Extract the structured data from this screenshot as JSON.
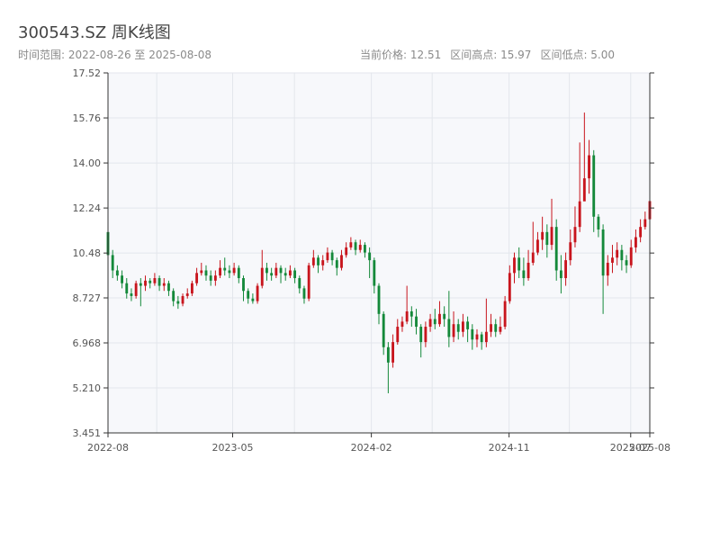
{
  "header": {
    "title": "300543.SZ 周K线图",
    "time_range": "时间范围: 2022-08-26 至 2025-08-08",
    "current_price": "当前价格: 12.51",
    "range_high": "区间高点: 15.97",
    "range_low": "区间低点: 5.00"
  },
  "colors": {
    "up": "#c8151d",
    "down": "#14893a",
    "plot_bg": "#f7f8fb",
    "grid": "#e3e6ec",
    "axis": "#333333"
  },
  "chart_data": {
    "type": "candlestick",
    "title": "300543.SZ 周K线图",
    "xlabel": "",
    "ylabel": "",
    "ylim": [
      3.451,
      17.52
    ],
    "y_ticks": [
      "3.451",
      "5.210",
      "6.968",
      "8.727",
      "10.48",
      "12.24",
      "14.00",
      "15.76",
      "17.52"
    ],
    "x_range": [
      "2022-08-26",
      "2025-08-08"
    ],
    "x_ticks": [
      "2022-08",
      "2023-05",
      "2024-02",
      "2024-11",
      "2025-07",
      "2025-08"
    ],
    "grid": true,
    "legend": "none",
    "weeks": [
      [
        11.3,
        10.4,
        11.9,
        10.2
      ],
      [
        10.4,
        9.8,
        10.6,
        9.5
      ],
      [
        9.8,
        9.6,
        10.0,
        9.4
      ],
      [
        9.6,
        9.3,
        9.8,
        9.1
      ],
      [
        9.3,
        8.9,
        9.5,
        8.7
      ],
      [
        8.9,
        8.8,
        9.1,
        8.6
      ],
      [
        8.8,
        9.3,
        9.4,
        8.7
      ],
      [
        9.3,
        9.2,
        9.5,
        8.4
      ],
      [
        9.2,
        9.4,
        9.6,
        9.0
      ],
      [
        9.4,
        9.3,
        9.5,
        9.1
      ],
      [
        9.3,
        9.5,
        9.7,
        9.2
      ],
      [
        9.5,
        9.2,
        9.6,
        9.0
      ],
      [
        9.2,
        9.3,
        9.5,
        9.0
      ],
      [
        9.3,
        9.0,
        9.4,
        8.8
      ],
      [
        9.0,
        8.6,
        9.1,
        8.4
      ],
      [
        8.6,
        8.5,
        8.8,
        8.3
      ],
      [
        8.5,
        8.8,
        8.9,
        8.4
      ],
      [
        8.8,
        8.9,
        9.1,
        8.7
      ],
      [
        8.9,
        9.3,
        9.4,
        8.8
      ],
      [
        9.3,
        9.7,
        9.9,
        9.2
      ],
      [
        9.7,
        9.8,
        10.1,
        9.6
      ],
      [
        9.8,
        9.6,
        10.0,
        9.4
      ],
      [
        9.6,
        9.4,
        9.8,
        9.2
      ],
      [
        9.4,
        9.6,
        9.8,
        9.2
      ],
      [
        9.6,
        9.9,
        10.2,
        9.5
      ],
      [
        9.9,
        9.8,
        10.3,
        9.6
      ],
      [
        9.8,
        9.7,
        10.0,
        9.5
      ],
      [
        9.7,
        9.9,
        10.1,
        9.6
      ],
      [
        9.9,
        9.5,
        10.0,
        9.3
      ],
      [
        9.5,
        9.0,
        9.6,
        8.6
      ],
      [
        9.0,
        8.7,
        9.1,
        8.5
      ],
      [
        8.7,
        8.6,
        8.9,
        8.5
      ],
      [
        8.6,
        9.2,
        9.3,
        8.5
      ],
      [
        9.2,
        9.9,
        10.6,
        9.1
      ],
      [
        9.9,
        9.7,
        10.1,
        9.4
      ],
      [
        9.7,
        9.6,
        9.9,
        9.4
      ],
      [
        9.6,
        9.9,
        10.1,
        9.5
      ],
      [
        9.9,
        9.7,
        10.0,
        9.3
      ],
      [
        9.7,
        9.6,
        9.9,
        9.4
      ],
      [
        9.6,
        9.8,
        10.0,
        9.5
      ],
      [
        9.8,
        9.5,
        9.9,
        9.3
      ],
      [
        9.5,
        9.1,
        9.6,
        8.9
      ],
      [
        9.1,
        8.7,
        9.2,
        8.5
      ],
      [
        8.7,
        10.0,
        10.1,
        8.6
      ],
      [
        10.0,
        10.3,
        10.6,
        9.9
      ],
      [
        10.3,
        10.0,
        10.4,
        9.7
      ],
      [
        10.0,
        10.2,
        10.4,
        9.8
      ],
      [
        10.2,
        10.5,
        10.7,
        10.1
      ],
      [
        10.5,
        10.2,
        10.6,
        10.0
      ],
      [
        10.2,
        9.9,
        10.3,
        9.6
      ],
      [
        9.9,
        10.4,
        10.6,
        9.8
      ],
      [
        10.4,
        10.7,
        10.9,
        10.3
      ],
      [
        10.7,
        10.9,
        11.1,
        10.6
      ],
      [
        10.9,
        10.6,
        11.0,
        10.4
      ],
      [
        10.6,
        10.8,
        11.0,
        10.5
      ],
      [
        10.8,
        10.5,
        10.9,
        10.3
      ],
      [
        10.5,
        10.2,
        10.7,
        9.5
      ],
      [
        10.2,
        9.2,
        10.3,
        8.9
      ],
      [
        9.2,
        8.1,
        9.3,
        7.7
      ],
      [
        8.1,
        6.8,
        8.2,
        6.5
      ],
      [
        6.8,
        6.2,
        7.0,
        5.0
      ],
      [
        6.2,
        7.0,
        7.3,
        6.0
      ],
      [
        7.0,
        7.6,
        7.9,
        6.9
      ],
      [
        7.6,
        7.8,
        8.0,
        7.4
      ],
      [
        7.8,
        8.2,
        9.2,
        7.7
      ],
      [
        8.2,
        8.0,
        8.4,
        7.6
      ],
      [
        8.0,
        7.6,
        8.3,
        7.3
      ],
      [
        7.6,
        7.0,
        7.7,
        6.4
      ],
      [
        7.0,
        7.6,
        7.8,
        6.8
      ],
      [
        7.6,
        7.9,
        8.1,
        7.4
      ],
      [
        7.9,
        7.7,
        8.3,
        7.5
      ],
      [
        7.7,
        8.1,
        8.6,
        7.6
      ],
      [
        8.1,
        7.9,
        8.4,
        7.6
      ],
      [
        7.9,
        7.2,
        9.0,
        6.8
      ],
      [
        7.2,
        7.7,
        8.2,
        7.0
      ],
      [
        7.7,
        7.4,
        7.9,
        7.1
      ],
      [
        7.4,
        7.8,
        8.1,
        7.2
      ],
      [
        7.8,
        7.5,
        8.0,
        7.0
      ],
      [
        7.5,
        7.1,
        7.7,
        6.7
      ],
      [
        7.1,
        7.3,
        7.5,
        6.8
      ],
      [
        7.3,
        7.0,
        7.4,
        6.7
      ],
      [
        7.0,
        7.4,
        8.7,
        6.8
      ],
      [
        7.4,
        7.7,
        8.1,
        7.2
      ],
      [
        7.7,
        7.4,
        7.9,
        7.2
      ],
      [
        7.4,
        7.6,
        8.0,
        7.3
      ],
      [
        7.6,
        8.6,
        8.8,
        7.5
      ],
      [
        8.6,
        9.7,
        10.0,
        8.5
      ],
      [
        9.7,
        10.3,
        10.5,
        9.3
      ],
      [
        10.3,
        9.8,
        10.7,
        9.5
      ],
      [
        9.8,
        9.5,
        10.3,
        9.2
      ],
      [
        9.5,
        10.1,
        10.6,
        9.4
      ],
      [
        10.1,
        10.5,
        11.7,
        10.0
      ],
      [
        10.5,
        11.0,
        11.3,
        10.4
      ],
      [
        11.0,
        11.3,
        11.9,
        10.6
      ],
      [
        11.3,
        10.8,
        11.6,
        10.3
      ],
      [
        10.8,
        11.5,
        12.6,
        10.6
      ],
      [
        11.5,
        9.8,
        11.8,
        9.4
      ],
      [
        9.8,
        9.5,
        10.4,
        8.9
      ],
      [
        9.5,
        10.2,
        10.5,
        9.2
      ],
      [
        10.2,
        10.9,
        11.4,
        10.0
      ],
      [
        10.9,
        11.5,
        12.3,
        10.7
      ],
      [
        11.5,
        12.5,
        14.8,
        11.3
      ],
      [
        12.5,
        13.4,
        15.97,
        12.6
      ],
      [
        13.4,
        14.3,
        14.9,
        12.8
      ],
      [
        14.3,
        11.9,
        14.5,
        11.3
      ],
      [
        11.9,
        11.4,
        12.0,
        11.1
      ],
      [
        11.4,
        9.6,
        11.6,
        8.1
      ],
      [
        9.6,
        10.1,
        10.4,
        9.2
      ],
      [
        10.1,
        10.3,
        10.8,
        9.7
      ],
      [
        10.3,
        10.6,
        10.9,
        10.0
      ],
      [
        10.6,
        10.2,
        10.8,
        9.8
      ],
      [
        10.2,
        10.0,
        10.4,
        9.7
      ],
      [
        10.0,
        10.7,
        11.0,
        9.9
      ],
      [
        10.7,
        11.1,
        11.4,
        10.5
      ],
      [
        11.1,
        11.5,
        11.8,
        10.9
      ],
      [
        11.5,
        11.8,
        12.1,
        11.4
      ],
      [
        11.8,
        12.51,
        13.1,
        11.5
      ]
    ]
  }
}
